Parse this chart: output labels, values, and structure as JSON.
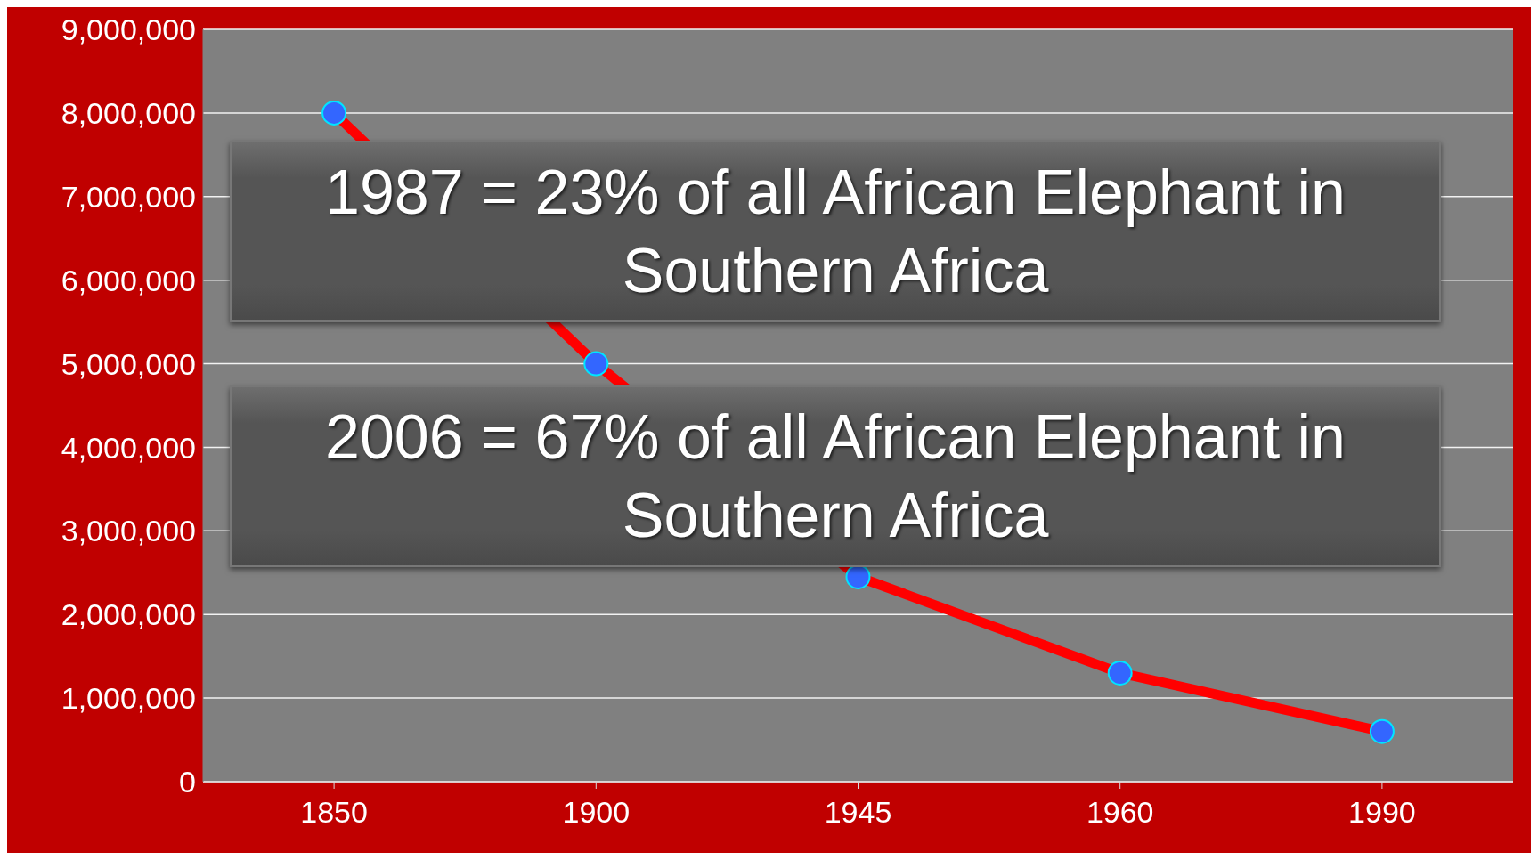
{
  "chart_data": {
    "type": "line",
    "categories": [
      "1850",
      "1900",
      "1945",
      "1960",
      "1990"
    ],
    "series": [
      {
        "color": "#ff0000",
        "values": [
          8000000,
          5000000,
          2450000,
          1300000,
          600000
        ]
      }
    ],
    "ylim": [
      0,
      9000000
    ],
    "yticks": [
      {
        "value": 0,
        "label": "0"
      },
      {
        "value": 1000000,
        "label": "1,000,000"
      },
      {
        "value": 2000000,
        "label": "2,000,000"
      },
      {
        "value": 3000000,
        "label": "3,000,000"
      },
      {
        "value": 4000000,
        "label": "4,000,000"
      },
      {
        "value": 5000000,
        "label": "5,000,000"
      },
      {
        "value": 6000000,
        "label": "6,000,000"
      },
      {
        "value": 7000000,
        "label": "7,000,000"
      },
      {
        "value": 8000000,
        "label": "8,000,000"
      },
      {
        "value": 9000000,
        "label": "9,000,000"
      }
    ],
    "grid": "y",
    "marker": "circle",
    "line_style": "solid",
    "annotations": [
      "1987 = 23% of all African Elephant in Southern Africa",
      "2006 = 67% of all African Elephant in Southern Africa"
    ]
  }
}
